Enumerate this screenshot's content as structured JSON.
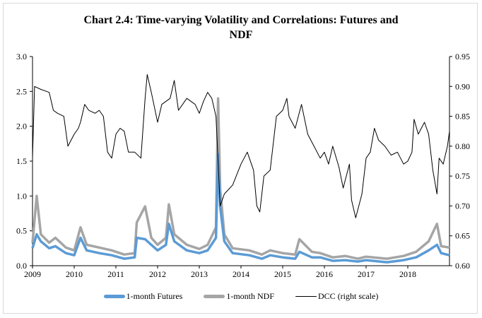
{
  "chart_data": {
    "type": "line",
    "title": "Chart 2.4: Time-varying Volatility and Correlations: Futures and NDF",
    "title_lines": [
      "Chart 2.4: Time-varying Volatility and Correlations: Futures and",
      "NDF"
    ],
    "xlabel": "",
    "ylabel": "",
    "y2label": "",
    "xlim": [
      2009,
      2019
    ],
    "ylim": [
      0,
      3.0
    ],
    "y2lim": [
      0.6,
      0.95
    ],
    "x_ticks": [
      "2009",
      "2010",
      "2011",
      "2012",
      "2013",
      "2014",
      "2015",
      "2016",
      "2017",
      "2018"
    ],
    "y_ticks": [
      "0.0",
      "0.5",
      "1.0",
      "1.5",
      "2.0",
      "2.5",
      "3.0"
    ],
    "y2_ticks": [
      "0.60",
      "0.65",
      "0.70",
      "0.75",
      "0.80",
      "0.85",
      "0.90",
      "0.95"
    ],
    "grid": false,
    "legend_placement": "bottom",
    "series": [
      {
        "name": "1-month Futures",
        "axis": "left",
        "color": "#5b9bd5",
        "x": [
          2009.0,
          2009.1,
          2009.2,
          2009.4,
          2009.55,
          2009.8,
          2010.0,
          2010.15,
          2010.3,
          2010.6,
          2010.9,
          2011.2,
          2011.45,
          2011.5,
          2011.7,
          2011.85,
          2012.0,
          2012.2,
          2012.27,
          2012.4,
          2012.7,
          2013.0,
          2013.2,
          2013.4,
          2013.45,
          2013.5,
          2013.6,
          2013.8,
          2014.2,
          2014.5,
          2014.7,
          2015.0,
          2015.3,
          2015.4,
          2015.7,
          2015.9,
          2016.2,
          2016.5,
          2016.8,
          2017.0,
          2017.5,
          2017.9,
          2018.2,
          2018.5,
          2018.7,
          2018.8,
          2019.0
        ],
        "y": [
          0.25,
          0.45,
          0.35,
          0.25,
          0.28,
          0.18,
          0.15,
          0.4,
          0.22,
          0.18,
          0.15,
          0.1,
          0.12,
          0.4,
          0.38,
          0.3,
          0.22,
          0.3,
          0.6,
          0.35,
          0.22,
          0.18,
          0.22,
          0.4,
          1.6,
          0.85,
          0.35,
          0.18,
          0.15,
          0.1,
          0.15,
          0.12,
          0.1,
          0.2,
          0.12,
          0.12,
          0.07,
          0.08,
          0.06,
          0.08,
          0.05,
          0.08,
          0.12,
          0.22,
          0.3,
          0.18,
          0.15
        ]
      },
      {
        "name": "1-month NDF",
        "axis": "left",
        "color": "#a5a5a5",
        "x": [
          2009.0,
          2009.1,
          2009.2,
          2009.4,
          2009.55,
          2009.8,
          2010.0,
          2010.15,
          2010.3,
          2010.6,
          2010.9,
          2011.2,
          2011.45,
          2011.5,
          2011.7,
          2011.85,
          2012.0,
          2012.2,
          2012.27,
          2012.4,
          2012.7,
          2013.0,
          2013.2,
          2013.4,
          2013.45,
          2013.5,
          2013.6,
          2013.8,
          2014.2,
          2014.5,
          2014.7,
          2015.0,
          2015.3,
          2015.4,
          2015.7,
          2015.9,
          2016.2,
          2016.5,
          2016.8,
          2017.0,
          2017.5,
          2017.9,
          2018.2,
          2018.5,
          2018.7,
          2018.8,
          2019.0
        ],
        "y": [
          0.33,
          1.0,
          0.45,
          0.33,
          0.4,
          0.26,
          0.22,
          0.55,
          0.3,
          0.26,
          0.22,
          0.16,
          0.18,
          0.62,
          0.85,
          0.4,
          0.3,
          0.4,
          0.88,
          0.45,
          0.3,
          0.24,
          0.3,
          0.55,
          2.4,
          1.1,
          0.45,
          0.25,
          0.22,
          0.16,
          0.22,
          0.18,
          0.16,
          0.38,
          0.2,
          0.18,
          0.12,
          0.14,
          0.1,
          0.13,
          0.1,
          0.14,
          0.2,
          0.35,
          0.6,
          0.28,
          0.26
        ]
      },
      {
        "name": "DCC (right scale)",
        "axis": "right",
        "color": "#000000",
        "x": [
          2009.0,
          2009.05,
          2009.2,
          2009.4,
          2009.5,
          2009.6,
          2009.75,
          2009.85,
          2010.0,
          2010.1,
          2010.15,
          2010.25,
          2010.35,
          2010.5,
          2010.6,
          2010.7,
          2010.8,
          2010.9,
          2011.0,
          2011.1,
          2011.2,
          2011.3,
          2011.45,
          2011.6,
          2011.7,
          2011.75,
          2011.85,
          2012.0,
          2012.1,
          2012.3,
          2012.4,
          2012.5,
          2012.7,
          2012.9,
          2013.0,
          2013.1,
          2013.2,
          2013.3,
          2013.4,
          2013.5,
          2013.6,
          2013.8,
          2014.0,
          2014.15,
          2014.3,
          2014.38,
          2014.45,
          2014.55,
          2014.7,
          2014.85,
          2015.0,
          2015.1,
          2015.15,
          2015.3,
          2015.45,
          2015.6,
          2015.75,
          2015.9,
          2016.0,
          2016.1,
          2016.2,
          2016.35,
          2016.45,
          2016.6,
          2016.65,
          2016.75,
          2016.9,
          2017.0,
          2017.1,
          2017.2,
          2017.3,
          2017.45,
          2017.6,
          2017.75,
          2017.9,
          2018.0,
          2018.1,
          2018.15,
          2018.25,
          2018.4,
          2018.5,
          2018.6,
          2018.7,
          2018.75,
          2018.85,
          2018.95,
          2019.0
        ],
        "y": [
          0.78,
          0.9,
          0.895,
          0.89,
          0.86,
          0.855,
          0.85,
          0.8,
          0.82,
          0.83,
          0.84,
          0.87,
          0.86,
          0.855,
          0.86,
          0.85,
          0.79,
          0.78,
          0.82,
          0.83,
          0.825,
          0.79,
          0.79,
          0.78,
          0.88,
          0.92,
          0.89,
          0.84,
          0.87,
          0.88,
          0.91,
          0.86,
          0.88,
          0.87,
          0.855,
          0.875,
          0.89,
          0.88,
          0.85,
          0.7,
          0.72,
          0.735,
          0.77,
          0.79,
          0.76,
          0.7,
          0.69,
          0.75,
          0.76,
          0.85,
          0.86,
          0.88,
          0.85,
          0.83,
          0.87,
          0.82,
          0.8,
          0.78,
          0.79,
          0.77,
          0.8,
          0.765,
          0.73,
          0.77,
          0.71,
          0.68,
          0.72,
          0.78,
          0.79,
          0.83,
          0.81,
          0.8,
          0.785,
          0.79,
          0.77,
          0.775,
          0.79,
          0.845,
          0.82,
          0.84,
          0.82,
          0.76,
          0.72,
          0.78,
          0.77,
          0.8,
          0.825
        ]
      }
    ]
  }
}
